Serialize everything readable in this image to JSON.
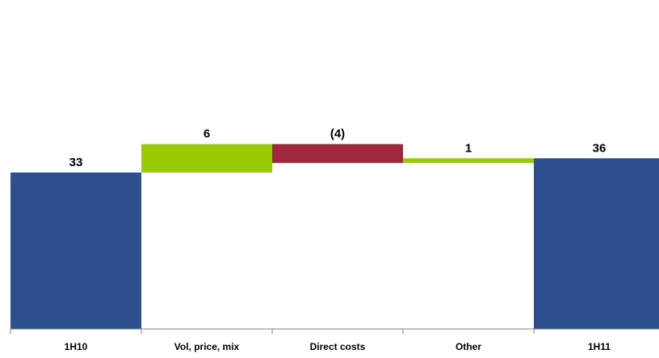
{
  "chart_data": {
    "type": "bar",
    "subtype": "waterfall",
    "categories": [
      "1H10",
      "Vol, price, mix",
      "Direct costs",
      "Other",
      "1H11"
    ],
    "values": [
      33,
      6,
      -4,
      1,
      36
    ],
    "kinds": [
      "total",
      "delta",
      "delta",
      "delta",
      "total"
    ],
    "data_labels": [
      "33",
      "6",
      "(4)",
      "1",
      "36"
    ],
    "ylim": [
      0,
      42
    ],
    "grid": false,
    "legend": "none",
    "colors": {
      "total": "#2E4F8E",
      "increase": "#99CC00",
      "decrease": "#A0283A",
      "axis": "#808080"
    }
  }
}
